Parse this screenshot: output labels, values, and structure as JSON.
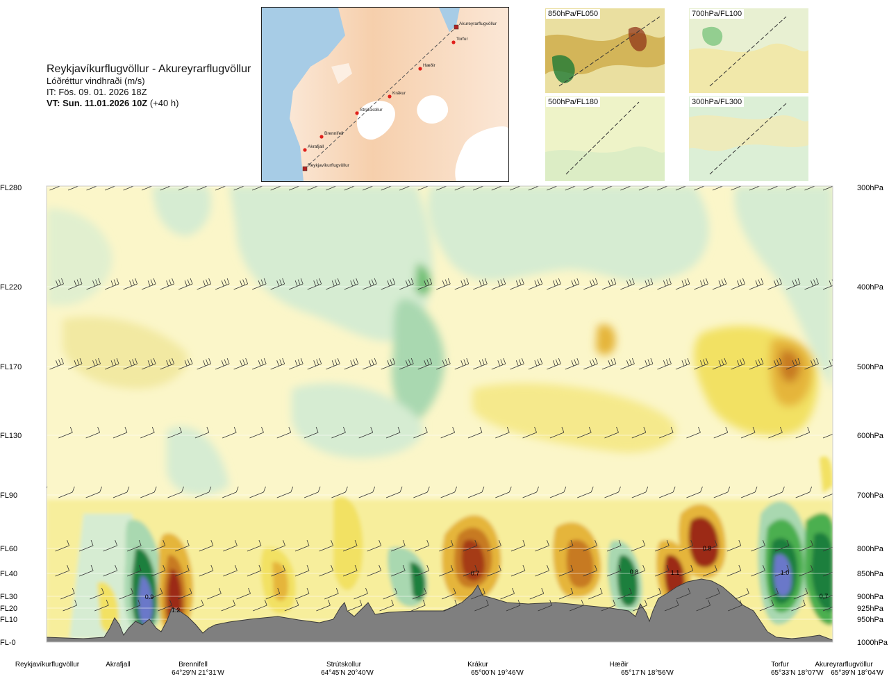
{
  "header": {
    "title": "Reykjavíkurflugvöllur - Akureyrarflugvöllur",
    "subtitle": "Lóðréttur vindhraði (m/s)",
    "it": "IT: Fös. 09. 01. 2026 18Z",
    "vt_bold": "VT: Sun. 11.01.2026 10Z",
    "vt_rest": " (+40 h)"
  },
  "route_map": {
    "labels": [
      "Akureyrarflugvöllur",
      "Torfur",
      "Hæðir",
      "Krákur",
      "Strútskollur",
      "Brennifell",
      "Akrafjall",
      "Reykjavíkurflugvöllur"
    ]
  },
  "mini_maps": [
    {
      "label": "850hPa/FL050"
    },
    {
      "label": "700hPa/FL100"
    },
    {
      "label": "500hPa/FL180"
    },
    {
      "label": "300hPa/FL300"
    }
  ],
  "colors": {
    "terrain": "#7f7f7f",
    "down_strong": "#1a7f3c",
    "down_mid": "#4caf50",
    "down_weak": "#a9d8b0",
    "down_faint": "#d6ecd2",
    "up_faint": "#fbf3bb",
    "up_weak": "#f2e163",
    "up_mid": "#e5b53a",
    "up_strong": "#c77a24",
    "up_max": "#9c2a14",
    "down_max": "#6b78c9"
  },
  "chart_data": {
    "type": "heatmap",
    "title": "Lóðréttur vindhraði (m/s)",
    "y_levels": [
      {
        "fl": "FL280",
        "hpa": "300hPa"
      },
      {
        "fl": "FL220",
        "hpa": "400hPa"
      },
      {
        "fl": "FL170",
        "hpa": "500hPa"
      },
      {
        "fl": "FL130",
        "hpa": "600hPa"
      },
      {
        "fl": "FL90",
        "hpa": "700hPa"
      },
      {
        "fl": "FL60",
        "hpa": "800hPa"
      },
      {
        "fl": "FL40",
        "hpa": "850hPa"
      },
      {
        "fl": "FL30",
        "hpa": "900hPa"
      },
      {
        "fl": "FL20",
        "hpa": "925hPa"
      },
      {
        "fl": "FL10",
        "hpa": "950hPa"
      },
      {
        "fl": "FL-0",
        "hpa": "1000hPa"
      }
    ],
    "waypoints": [
      {
        "name": "Reykjavíkurflugvöllur",
        "coord": ""
      },
      {
        "name": "Akrafjall",
        "coord": ""
      },
      {
        "name": "Brennifell",
        "coord": "64°29'N 21°31'W"
      },
      {
        "name": "Strútskollur",
        "coord": "64°45'N 20°40'W"
      },
      {
        "name": "Krákur",
        "coord": "65°00'N 19°46'W"
      },
      {
        "name": "Hæðir",
        "coord": "65°17'N 18°56'W"
      },
      {
        "name": "Torfur",
        "coord": "65°33'N 18°07'W"
      },
      {
        "name": "Akureyrarflugvöllur",
        "coord": "65°39'N 18°04'W"
      }
    ],
    "extrema_labels": [
      {
        "text": "0.9"
      },
      {
        "text": "1.2"
      },
      {
        "text": "0.7"
      },
      {
        "text": "0.8"
      },
      {
        "text": "1.1"
      },
      {
        "text": "0.8"
      },
      {
        "text": "1.0"
      },
      {
        "text": "0.7"
      }
    ]
  }
}
